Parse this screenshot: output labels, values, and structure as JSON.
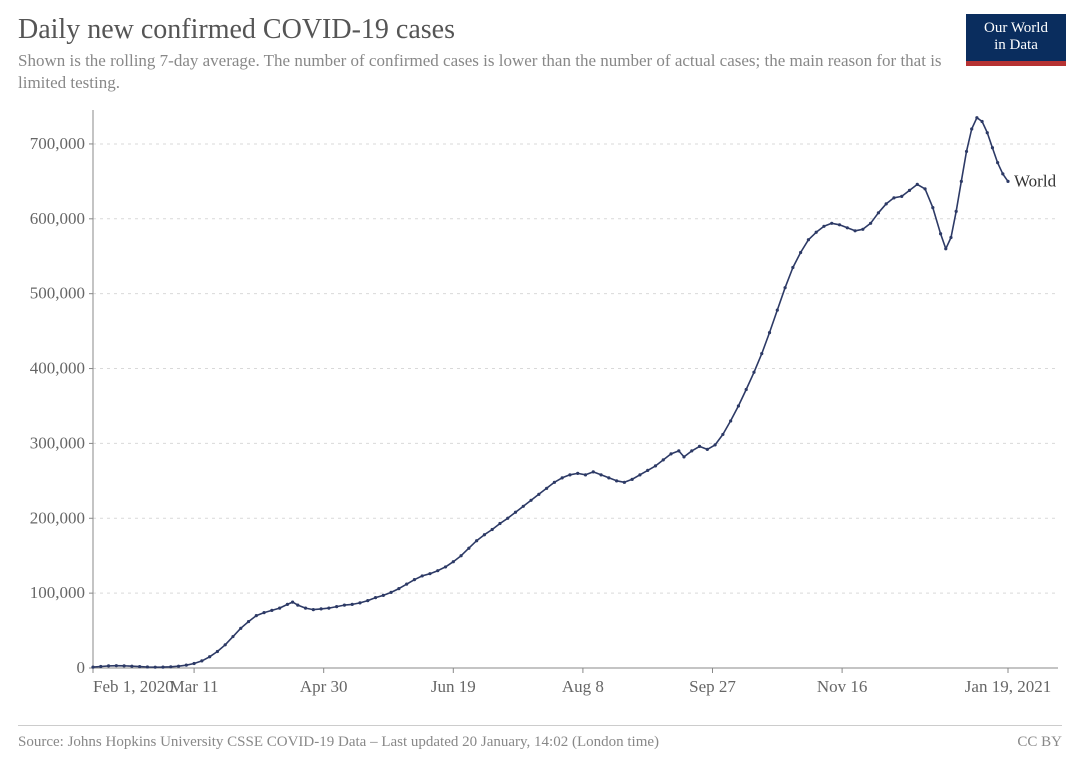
{
  "title": "Daily new confirmed COVID-19 cases",
  "subtitle": "Shown is the rolling 7-day average. The number of confirmed cases is lower than the number of actual cases; the main reason for that is limited testing.",
  "logo": {
    "line1": "Our World",
    "line2": "in Data",
    "bg": "#0a2d5e",
    "accent": "#b63232",
    "text_color": "#ffffff"
  },
  "footer": {
    "source": "Source: Johns Hopkins University CSSE COVID-19 Data – Last updated 20 January, 14:02 (London time)",
    "license": "CC BY"
  },
  "chart": {
    "type": "line",
    "background_color": "#ffffff",
    "grid_color": "#d9d9d9",
    "axis_line_color": "#888888",
    "text_color": "#666666",
    "series_label": "World",
    "series_label_fontsize": 17,
    "axis_fontsize": 17,
    "line_color": "#2d3a66",
    "line_width": 1.6,
    "marker_radius": 1.6,
    "marker_color": "#2d3a66",
    "x_axis": {
      "min": 0,
      "max": 353,
      "ticks": [
        {
          "t": 0,
          "label": "Feb 1, 2020"
        },
        {
          "t": 39,
          "label": "Mar 11"
        },
        {
          "t": 89,
          "label": "Apr 30"
        },
        {
          "t": 139,
          "label": "Jun 19"
        },
        {
          "t": 189,
          "label": "Aug 8"
        },
        {
          "t": 239,
          "label": "Sep 27"
        },
        {
          "t": 289,
          "label": "Nov 16"
        },
        {
          "t": 353,
          "label": "Jan 19, 2021"
        }
      ]
    },
    "y_axis": {
      "min": 0,
      "max": 740000,
      "ticks": [
        {
          "v": 0,
          "label": "0"
        },
        {
          "v": 100000,
          "label": "100,000"
        },
        {
          "v": 200000,
          "label": "200,000"
        },
        {
          "v": 300000,
          "label": "300,000"
        },
        {
          "v": 400000,
          "label": "400,000"
        },
        {
          "v": 500000,
          "label": "500,000"
        },
        {
          "v": 600000,
          "label": "600,000"
        },
        {
          "v": 700000,
          "label": "700,000"
        }
      ]
    },
    "series": [
      {
        "t": 0,
        "v": 1200
      },
      {
        "t": 3,
        "v": 2000
      },
      {
        "t": 6,
        "v": 2800
      },
      {
        "t": 9,
        "v": 3100
      },
      {
        "t": 12,
        "v": 2900
      },
      {
        "t": 15,
        "v": 2400
      },
      {
        "t": 18,
        "v": 1900
      },
      {
        "t": 21,
        "v": 1400
      },
      {
        "t": 24,
        "v": 1100
      },
      {
        "t": 27,
        "v": 1200
      },
      {
        "t": 30,
        "v": 1600
      },
      {
        "t": 33,
        "v": 2400
      },
      {
        "t": 36,
        "v": 3800
      },
      {
        "t": 39,
        "v": 6000
      },
      {
        "t": 42,
        "v": 9500
      },
      {
        "t": 45,
        "v": 15000
      },
      {
        "t": 48,
        "v": 22000
      },
      {
        "t": 51,
        "v": 31000
      },
      {
        "t": 54,
        "v": 42000
      },
      {
        "t": 57,
        "v": 53000
      },
      {
        "t": 60,
        "v": 62000
      },
      {
        "t": 63,
        "v": 70000
      },
      {
        "t": 66,
        "v": 74000
      },
      {
        "t": 69,
        "v": 77000
      },
      {
        "t": 72,
        "v": 80000
      },
      {
        "t": 75,
        "v": 85000
      },
      {
        "t": 77,
        "v": 88000
      },
      {
        "t": 79,
        "v": 84000
      },
      {
        "t": 82,
        "v": 80000
      },
      {
        "t": 85,
        "v": 78000
      },
      {
        "t": 88,
        "v": 79000
      },
      {
        "t": 91,
        "v": 80000
      },
      {
        "t": 94,
        "v": 82000
      },
      {
        "t": 97,
        "v": 84000
      },
      {
        "t": 100,
        "v": 85000
      },
      {
        "t": 103,
        "v": 87000
      },
      {
        "t": 106,
        "v": 90000
      },
      {
        "t": 109,
        "v": 94000
      },
      {
        "t": 112,
        "v": 97000
      },
      {
        "t": 115,
        "v": 101000
      },
      {
        "t": 118,
        "v": 106000
      },
      {
        "t": 121,
        "v": 112000
      },
      {
        "t": 124,
        "v": 118000
      },
      {
        "t": 127,
        "v": 123000
      },
      {
        "t": 130,
        "v": 126000
      },
      {
        "t": 133,
        "v": 130000
      },
      {
        "t": 136,
        "v": 135000
      },
      {
        "t": 139,
        "v": 142000
      },
      {
        "t": 142,
        "v": 150000
      },
      {
        "t": 145,
        "v": 160000
      },
      {
        "t": 148,
        "v": 170000
      },
      {
        "t": 151,
        "v": 178000
      },
      {
        "t": 154,
        "v": 185000
      },
      {
        "t": 157,
        "v": 193000
      },
      {
        "t": 160,
        "v": 200000
      },
      {
        "t": 163,
        "v": 208000
      },
      {
        "t": 166,
        "v": 216000
      },
      {
        "t": 169,
        "v": 224000
      },
      {
        "t": 172,
        "v": 232000
      },
      {
        "t": 175,
        "v": 240000
      },
      {
        "t": 178,
        "v": 248000
      },
      {
        "t": 181,
        "v": 254000
      },
      {
        "t": 184,
        "v": 258000
      },
      {
        "t": 187,
        "v": 260000
      },
      {
        "t": 190,
        "v": 258000
      },
      {
        "t": 193,
        "v": 262000
      },
      {
        "t": 196,
        "v": 258000
      },
      {
        "t": 199,
        "v": 254000
      },
      {
        "t": 202,
        "v": 250000
      },
      {
        "t": 205,
        "v": 248000
      },
      {
        "t": 208,
        "v": 252000
      },
      {
        "t": 211,
        "v": 258000
      },
      {
        "t": 214,
        "v": 264000
      },
      {
        "t": 217,
        "v": 270000
      },
      {
        "t": 220,
        "v": 278000
      },
      {
        "t": 223,
        "v": 286000
      },
      {
        "t": 226,
        "v": 290000
      },
      {
        "t": 228,
        "v": 282000
      },
      {
        "t": 231,
        "v": 290000
      },
      {
        "t": 234,
        "v": 296000
      },
      {
        "t": 237,
        "v": 292000
      },
      {
        "t": 240,
        "v": 298000
      },
      {
        "t": 243,
        "v": 312000
      },
      {
        "t": 246,
        "v": 330000
      },
      {
        "t": 249,
        "v": 350000
      },
      {
        "t": 252,
        "v": 372000
      },
      {
        "t": 255,
        "v": 395000
      },
      {
        "t": 258,
        "v": 420000
      },
      {
        "t": 261,
        "v": 448000
      },
      {
        "t": 264,
        "v": 478000
      },
      {
        "t": 267,
        "v": 508000
      },
      {
        "t": 270,
        "v": 535000
      },
      {
        "t": 273,
        "v": 555000
      },
      {
        "t": 276,
        "v": 572000
      },
      {
        "t": 279,
        "v": 582000
      },
      {
        "t": 282,
        "v": 590000
      },
      {
        "t": 285,
        "v": 594000
      },
      {
        "t": 288,
        "v": 592000
      },
      {
        "t": 291,
        "v": 588000
      },
      {
        "t": 294,
        "v": 584000
      },
      {
        "t": 297,
        "v": 586000
      },
      {
        "t": 300,
        "v": 594000
      },
      {
        "t": 303,
        "v": 608000
      },
      {
        "t": 306,
        "v": 620000
      },
      {
        "t": 309,
        "v": 628000
      },
      {
        "t": 312,
        "v": 630000
      },
      {
        "t": 315,
        "v": 638000
      },
      {
        "t": 318,
        "v": 646000
      },
      {
        "t": 321,
        "v": 640000
      },
      {
        "t": 324,
        "v": 615000
      },
      {
        "t": 327,
        "v": 580000
      },
      {
        "t": 329,
        "v": 560000
      },
      {
        "t": 331,
        "v": 575000
      },
      {
        "t": 333,
        "v": 610000
      },
      {
        "t": 335,
        "v": 650000
      },
      {
        "t": 337,
        "v": 690000
      },
      {
        "t": 339,
        "v": 720000
      },
      {
        "t": 341,
        "v": 735000
      },
      {
        "t": 343,
        "v": 730000
      },
      {
        "t": 345,
        "v": 715000
      },
      {
        "t": 347,
        "v": 695000
      },
      {
        "t": 349,
        "v": 675000
      },
      {
        "t": 351,
        "v": 660000
      },
      {
        "t": 353,
        "v": 650000
      }
    ]
  }
}
